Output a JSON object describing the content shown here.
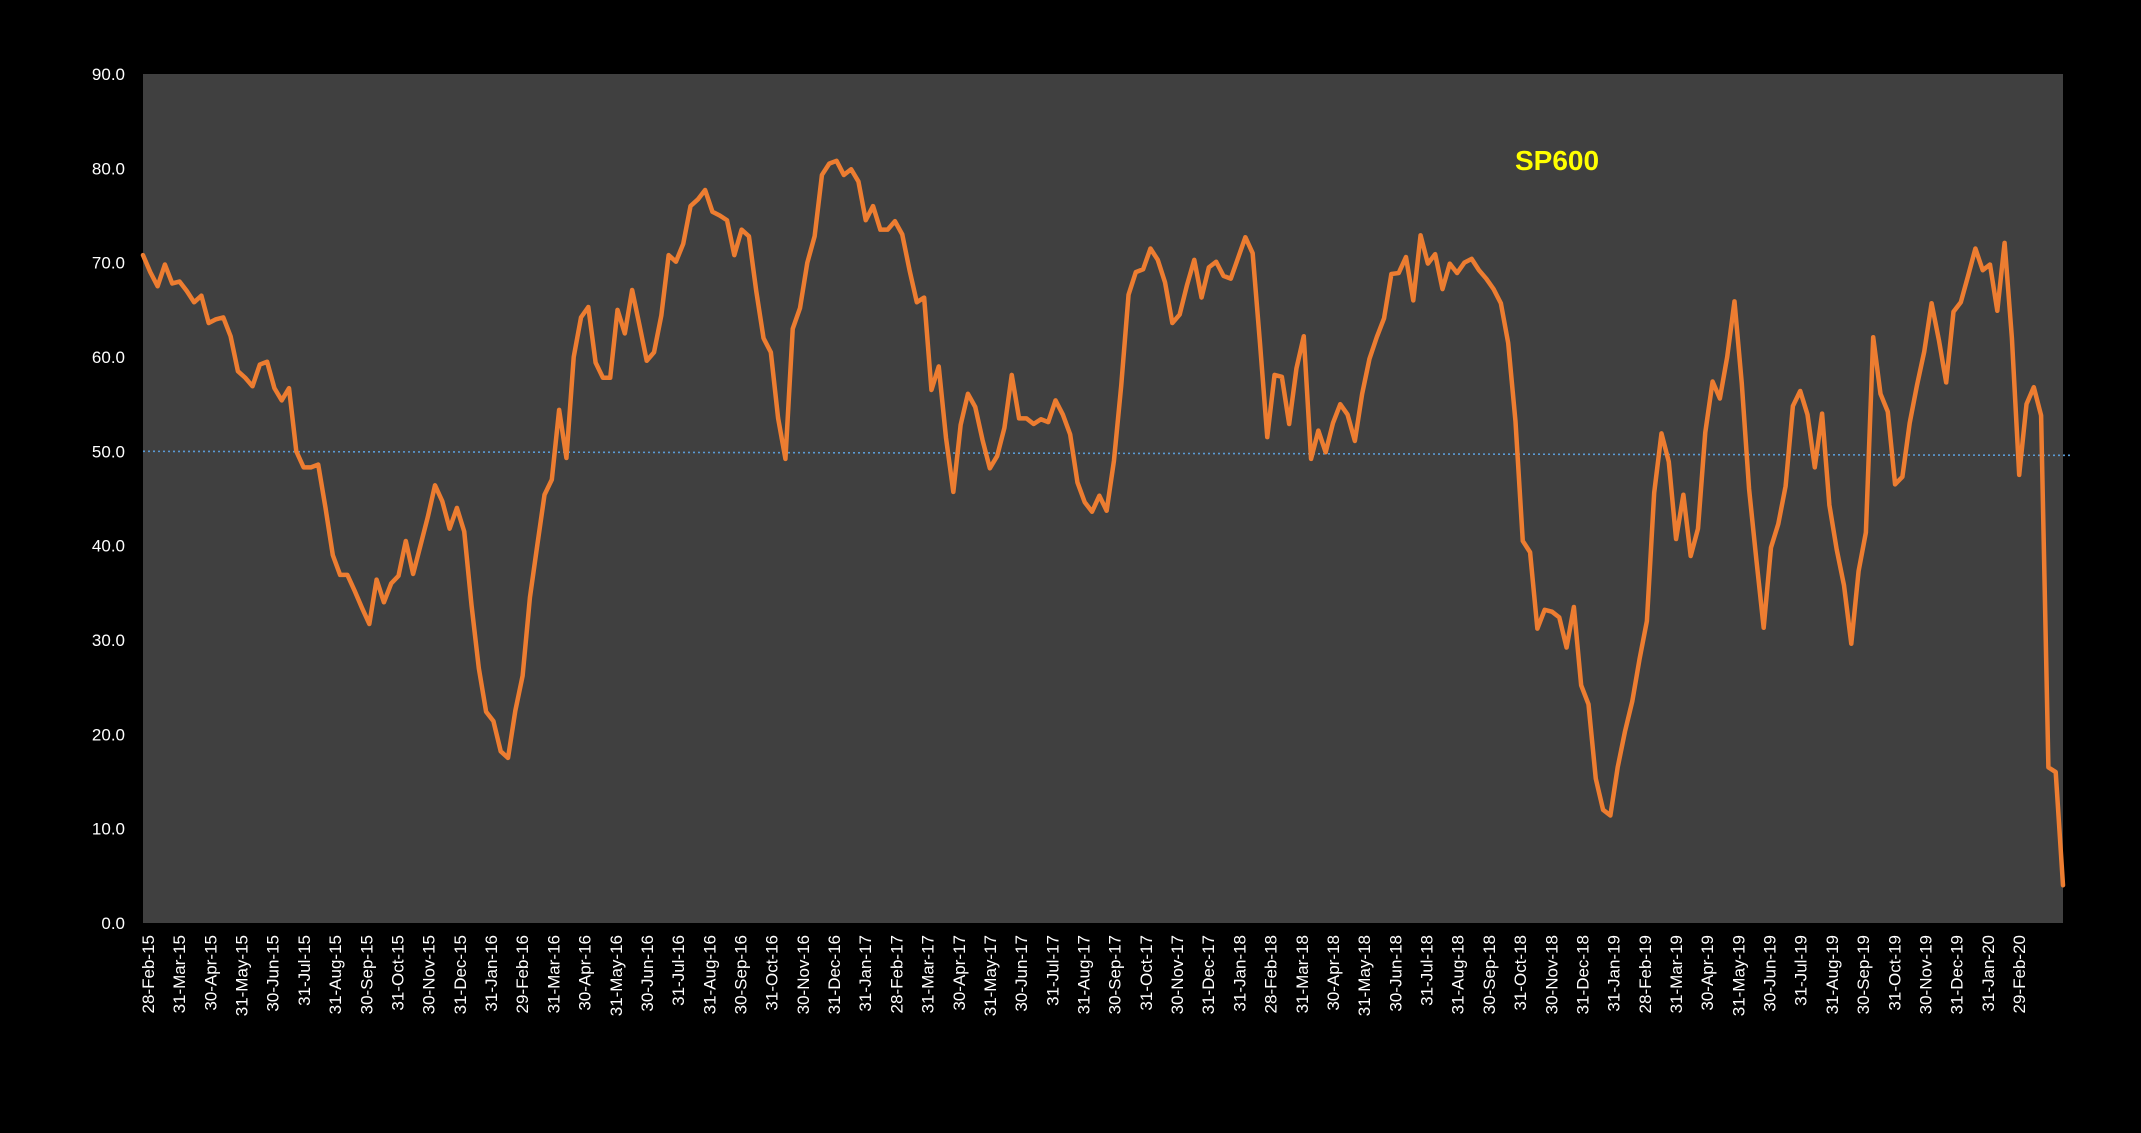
{
  "chart_data": {
    "type": "line",
    "title": "",
    "series_label": "SP600",
    "xlabel": "",
    "ylabel": "",
    "ylim": [
      0,
      90
    ],
    "yticks": [
      "0.0",
      "10.0",
      "20.0",
      "30.0",
      "40.0",
      "50.0",
      "60.0",
      "70.0",
      "80.0",
      "90.0"
    ],
    "reference_line": {
      "value": 50,
      "color": "#5b9bd5",
      "style": "dotted"
    },
    "x_tick_labels": [
      "28-Feb-15",
      "31-Mar-15",
      "30-Apr-15",
      "31-May-15",
      "30-Jun-15",
      "31-Jul-15",
      "31-Aug-15",
      "30-Sep-15",
      "31-Oct-15",
      "30-Nov-15",
      "31-Dec-15",
      "31-Jan-16",
      "29-Feb-16",
      "31-Mar-16",
      "30-Apr-16",
      "31-May-16",
      "30-Jun-16",
      "31-Jul-16",
      "31-Aug-16",
      "30-Sep-16",
      "31-Oct-16",
      "30-Nov-16",
      "31-Dec-16",
      "31-Jan-17",
      "28-Feb-17",
      "31-Mar-17",
      "30-Apr-17",
      "31-May-17",
      "30-Jun-17",
      "31-Jul-17",
      "31-Aug-17",
      "30-Sep-17",
      "31-Oct-17",
      "30-Nov-17",
      "31-Dec-17",
      "31-Jan-18",
      "28-Feb-18",
      "31-Mar-18",
      "30-Apr-18",
      "31-May-18",
      "30-Jun-18",
      "31-Jul-18",
      "31-Aug-18",
      "30-Sep-18",
      "31-Oct-18",
      "30-Nov-18",
      "31-Dec-18",
      "31-Jan-19",
      "28-Feb-19",
      "31-Mar-19",
      "30-Apr-19",
      "31-May-19",
      "30-Jun-19",
      "31-Jul-19",
      "31-Aug-19",
      "30-Sep-19",
      "31-Oct-19",
      "30-Nov-19",
      "31-Dec-19",
      "31-Jan-20",
      "29-Feb-20"
    ],
    "series": [
      {
        "color": "#ed7d31",
        "values": [
          70.8,
          69.0,
          67.5,
          69.8,
          67.8,
          68.0,
          67.0,
          65.8,
          66.5,
          63.6,
          64.0,
          64.2,
          62.2,
          58.5,
          57.8,
          56.9,
          59.2,
          59.5,
          56.7,
          55.4,
          56.7,
          50.0,
          48.3,
          48.3,
          48.6,
          44.0,
          39.0,
          36.9,
          36.9,
          35.2,
          33.4,
          31.7,
          36.4,
          34.0,
          36.0,
          36.8,
          40.5,
          37.0,
          40.0,
          43.0,
          46.4,
          44.7,
          41.8,
          44.0,
          41.5,
          33.7,
          27.0,
          22.4,
          21.4,
          18.2,
          17.5,
          22.5,
          26.2,
          34.5,
          40.0,
          45.4,
          47.0,
          54.4,
          49.3,
          60.0,
          64.2,
          65.3,
          59.4,
          57.8,
          57.8,
          65.0,
          62.5,
          67.1,
          63.4,
          59.6,
          60.5,
          64.4,
          70.8,
          70.1,
          72.0,
          76.0,
          76.7,
          77.7,
          75.4,
          75.0,
          74.5,
          70.8,
          73.5,
          72.8,
          67.0,
          62.0,
          60.5,
          53.5,
          49.2,
          63.0,
          65.2,
          70.0,
          72.8,
          79.3,
          80.5,
          80.8,
          79.3,
          79.9,
          78.6,
          74.5,
          76.0,
          73.5,
          73.5,
          74.4,
          73.0,
          69.2,
          65.8,
          66.3,
          56.5,
          59.0,
          51.4,
          45.7,
          52.8,
          56.1,
          54.7,
          51.2,
          48.2,
          49.5,
          52.5,
          58.1,
          53.5,
          53.5,
          52.9,
          53.4,
          53.1,
          55.4,
          53.9,
          51.8,
          46.7,
          44.6,
          43.6,
          45.3,
          43.7,
          49.0,
          57.0,
          66.6,
          69.0,
          69.3,
          71.5,
          70.3,
          67.9,
          63.6,
          64.5,
          67.6,
          70.3,
          66.3,
          69.5,
          70.1,
          68.6,
          68.3,
          70.5,
          72.7,
          71.0,
          61.5,
          51.5,
          58.1,
          57.9,
          52.9,
          58.8,
          62.2,
          49.2,
          52.2,
          49.9,
          53.0,
          55.0,
          53.9,
          51.1,
          56.1,
          59.8,
          62.1,
          64.1,
          68.8,
          68.9,
          70.6,
          66.0,
          72.9,
          69.9,
          70.9,
          67.2,
          69.9,
          68.9,
          70.0,
          70.4,
          69.2,
          68.3,
          67.2,
          65.7,
          61.5,
          53.2,
          40.5,
          39.3,
          31.2,
          33.2,
          33.0,
          32.4,
          29.2,
          33.5,
          25.2,
          23.2,
          15.3,
          12.0,
          11.4,
          16.5,
          20.3,
          23.5,
          28.0,
          32.0,
          45.6,
          51.9,
          48.9,
          40.7,
          45.4,
          38.9,
          41.8,
          52.0,
          57.4,
          55.6,
          60.0,
          65.9,
          57.2,
          46.0,
          38.5,
          31.3,
          39.8,
          42.3,
          46.3,
          54.8,
          56.4,
          53.9,
          48.3,
          54.0,
          44.3,
          39.6,
          35.8,
          29.6,
          37.3,
          41.4,
          62.1,
          56.1,
          54.2,
          46.5,
          47.3,
          53.0,
          57.0,
          60.6,
          65.7,
          61.8,
          57.3,
          64.8,
          65.8,
          68.6,
          71.5,
          69.2,
          69.8,
          64.9,
          72.1,
          62.0,
          47.5,
          55.0,
          56.8,
          53.8,
          16.5,
          16.0,
          4.0
        ]
      }
    ]
  }
}
